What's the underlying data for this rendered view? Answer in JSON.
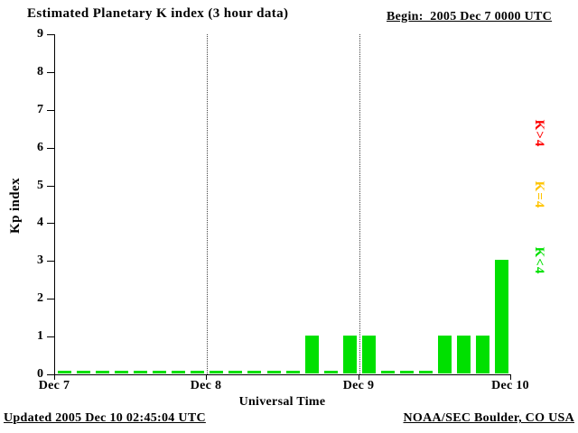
{
  "header": {
    "title": "Estimated Planetary K index (3 hour data)",
    "begin_label": "Begin:  2005 Dec 7 0000 UTC"
  },
  "footer": {
    "updated": "Updated 2005 Dec 10 02:45:04 UTC",
    "credit": "NOAA/SEC Boulder, CO USA"
  },
  "legend": [
    {
      "label": "K>4",
      "color": "#ff0000"
    },
    {
      "label": "K=4",
      "color": "#ffc400"
    },
    {
      "label": "K<4",
      "color": "#00e000"
    }
  ],
  "chart_data": {
    "type": "bar",
    "title": "Estimated Planetary K index (3 hour data)",
    "xlabel": "Universal Time",
    "ylabel": "Kp index",
    "ylim": [
      0,
      9
    ],
    "yticks": [
      0,
      1,
      2,
      3,
      4,
      5,
      6,
      7,
      8,
      9
    ],
    "x_tick_labels": [
      "Dec 7",
      "Dec 8",
      "Dec 9",
      "Dec 10"
    ],
    "bar_interval_hours": 3,
    "grid": "dotted vertical lines at day boundaries",
    "legend_position": "right, rotated 90deg",
    "days": [
      {
        "date": "2005 Dec 7",
        "values": [
          0,
          0,
          0,
          0,
          0,
          0,
          0,
          0
        ]
      },
      {
        "date": "2005 Dec 8",
        "values": [
          0,
          0,
          0,
          0,
          0,
          1,
          0,
          1
        ]
      },
      {
        "date": "2005 Dec 9",
        "values": [
          1,
          0,
          0,
          0,
          1,
          1,
          1,
          3
        ]
      }
    ],
    "values": [
      0,
      0,
      0,
      0,
      0,
      0,
      0,
      0,
      0,
      0,
      0,
      0,
      0,
      1,
      0,
      1,
      1,
      0,
      0,
      0,
      1,
      1,
      1,
      3
    ],
    "bar_color_rules": {
      "lt4": "#00e000",
      "eq4": "#ffc400",
      "gt4": "#ff0000"
    }
  }
}
